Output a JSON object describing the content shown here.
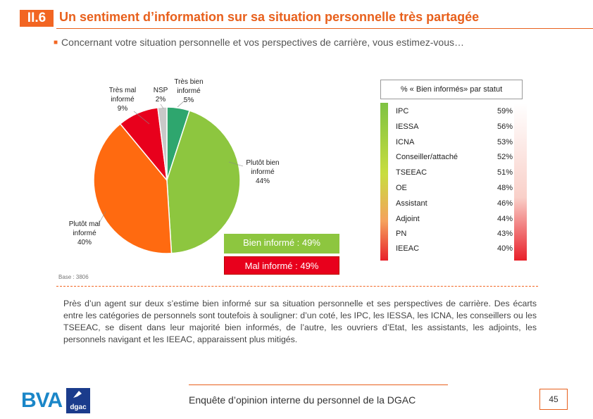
{
  "header": {
    "section_number": "II.6",
    "title": "Un sentiment d’information sur sa situation personnelle très partagée",
    "subtitle": "Concernant votre situation personnelle et vos perspectives de carrière, vous estimez-vous…"
  },
  "chart_data": [
    {
      "type": "pie",
      "slices": [
        {
          "label": "Très bien informé",
          "value": 5,
          "color": "#2ea66e"
        },
        {
          "label": "Plutôt bien informé",
          "value": 44,
          "color": "#8dc63f"
        },
        {
          "label": "Plutôt mal informé",
          "value": 40,
          "color": "#ff6a10"
        },
        {
          "label": "Très mal informé",
          "value": 9,
          "color": "#e8001c"
        },
        {
          "label": "NSP",
          "value": 2,
          "color": "#c8c8c8"
        }
      ],
      "labels": {
        "tres_bien": {
          "line1": "Très bien",
          "line2": "informé",
          "pct": "5%"
        },
        "nsp": {
          "line1": "NSP",
          "pct": "2%"
        },
        "tres_mal": {
          "line1": "Très mal",
          "line2": "informé",
          "pct": "9%"
        },
        "plutot_bien": {
          "line1": "Plutôt bien",
          "line2": "informé",
          "pct": "44%"
        },
        "plutot_mal": {
          "line1": "Plutôt mal",
          "line2": "informé",
          "pct": "40%"
        }
      },
      "summary": {
        "bien": "Bien informé : 49%",
        "mal": "Mal informé : 49%"
      },
      "base": "Base : 3806"
    },
    {
      "type": "table",
      "title": "% « Bien informés» par statut",
      "rows": [
        {
          "name": "IPC",
          "pct": "59%"
        },
        {
          "name": "IESSA",
          "pct": "56%"
        },
        {
          "name": "ICNA",
          "pct": "53%"
        },
        {
          "name": "Conseiller/attaché",
          "pct": "52%"
        },
        {
          "name": "TSEEAC",
          "pct": "51%"
        },
        {
          "name": "OE",
          "pct": "48%"
        },
        {
          "name": "Assistant",
          "pct": "46%"
        },
        {
          "name": "Adjoint",
          "pct": "44%"
        },
        {
          "name": "PN",
          "pct": "43%"
        },
        {
          "name": "IEEAC",
          "pct": "40%"
        }
      ]
    }
  ],
  "body_text": "Près d’un agent sur deux s’estime bien informé sur sa situation personnelle et ses perspectives de carrière. Des écarts entre les catégories de personnels sont toutefois à souligner: d’un coté, les IPC, les IESSA, les ICNA, les conseillers ou les TSEEAC, se disent dans leur majorité bien informés, de l’autre, les ouvriers d’Etat, les assistants, les adjoints, les personnels navigant et les IEEAC, apparaissent plus mitigés.",
  "footer": {
    "logo_bva": "BVA",
    "logo_dgac": "dgac",
    "text": "Enquête d’opinion interne du personnel de la DGAC",
    "page_number": "45"
  }
}
